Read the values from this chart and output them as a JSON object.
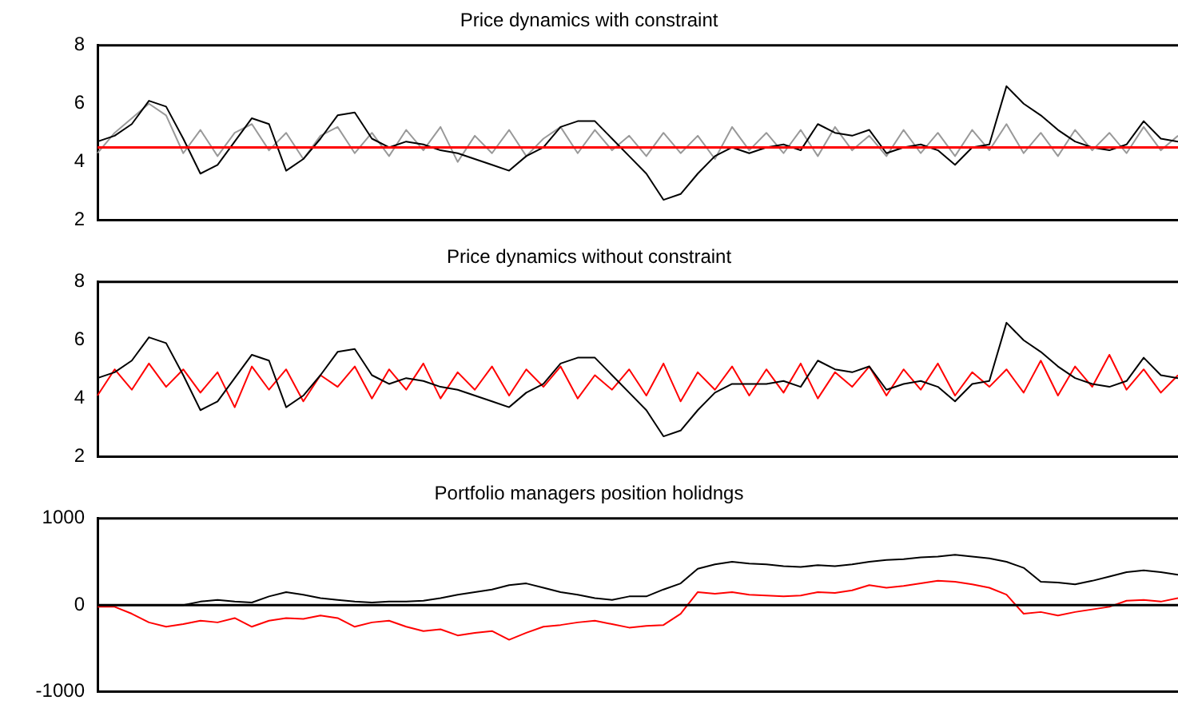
{
  "chart_data": [
    {
      "type": "line",
      "title": "Price dynamics with constraint",
      "categories": [
        null,
        null,
        null,
        null,
        null,
        null,
        null,
        null,
        null,
        null,
        null,
        null,
        null,
        null,
        null,
        null,
        null,
        null,
        null,
        null,
        null,
        null,
        null,
        null,
        null,
        null,
        null,
        null,
        null,
        null,
        null,
        null,
        null,
        null,
        null,
        null,
        null,
        null,
        null,
        null,
        null,
        null,
        null,
        null,
        null,
        null,
        null,
        null,
        null,
        null,
        null,
        null,
        null,
        null,
        null,
        null,
        null,
        null,
        null,
        null,
        null,
        null,
        null,
        null
      ],
      "ylim": [
        2,
        8
      ],
      "yticks": [
        2,
        4,
        6,
        8
      ],
      "tick_labels": "y",
      "legend": false,
      "grid": false,
      "marker": "none",
      "line_style": "solid",
      "series": [
        {
          "color": "#000000",
          "values": [
            4.7,
            4.9,
            5.3,
            6.1,
            5.9,
            4.8,
            3.6,
            3.9,
            4.7,
            5.5,
            5.3,
            3.7,
            4.1,
            4.8,
            5.6,
            5.7,
            4.8,
            4.5,
            4.7,
            4.6,
            4.4,
            4.3,
            4.1,
            3.9,
            3.7,
            4.2,
            4.5,
            5.2,
            5.4,
            5.4,
            4.8,
            4.2,
            3.6,
            2.7,
            2.9,
            3.6,
            4.2,
            4.5,
            4.3,
            4.5,
            4.6,
            4.4,
            5.3,
            5.0,
            4.9,
            5.1,
            4.3,
            4.5,
            4.6,
            4.4,
            3.9,
            4.5,
            4.6,
            6.6,
            6.0,
            5.6,
            5.1,
            4.7,
            4.5,
            4.4,
            4.6,
            5.4,
            4.8,
            4.7
          ]
        },
        {
          "color": "#999999",
          "values": [
            4.3,
            5.0,
            5.5,
            6.0,
            5.6,
            4.3,
            5.1,
            4.2,
            5.0,
            5.3,
            4.4,
            5.0,
            4.1,
            4.9,
            5.2,
            4.3,
            5.0,
            4.2,
            5.1,
            4.4,
            5.2,
            4.0,
            4.9,
            4.3,
            5.1,
            4.2,
            4.8,
            5.2,
            4.3,
            5.1,
            4.4,
            4.9,
            4.2,
            5.0,
            4.3,
            4.9,
            4.1,
            5.2,
            4.4,
            5.0,
            4.3,
            5.1,
            4.2,
            5.2,
            4.4,
            4.9,
            4.2,
            5.1,
            4.3,
            5.0,
            4.2,
            5.1,
            4.4,
            5.3,
            4.3,
            5.0,
            4.2,
            5.1,
            4.4,
            5.0,
            4.3,
            5.2,
            4.4,
            4.9
          ]
        }
      ],
      "ref_lines": [
        {
          "axis": "y",
          "value": 4.5,
          "color": "#ff0000"
        }
      ]
    },
    {
      "type": "line",
      "title": "Price dynamics without constraint",
      "categories": [
        null,
        null,
        null,
        null,
        null,
        null,
        null,
        null,
        null,
        null,
        null,
        null,
        null,
        null,
        null,
        null,
        null,
        null,
        null,
        null,
        null,
        null,
        null,
        null,
        null,
        null,
        null,
        null,
        null,
        null,
        null,
        null,
        null,
        null,
        null,
        null,
        null,
        null,
        null,
        null,
        null,
        null,
        null,
        null,
        null,
        null,
        null,
        null,
        null,
        null,
        null,
        null,
        null,
        null,
        null,
        null,
        null,
        null,
        null,
        null,
        null,
        null,
        null,
        null
      ],
      "ylim": [
        2,
        8
      ],
      "yticks": [
        2,
        4,
        6,
        8
      ],
      "tick_labels": "y",
      "legend": false,
      "grid": false,
      "marker": "none",
      "line_style": "solid",
      "series": [
        {
          "color": "#000000",
          "values": [
            4.7,
            4.9,
            5.3,
            6.1,
            5.9,
            4.8,
            3.6,
            3.9,
            4.7,
            5.5,
            5.3,
            3.7,
            4.1,
            4.8,
            5.6,
            5.7,
            4.8,
            4.5,
            4.7,
            4.6,
            4.4,
            4.3,
            4.1,
            3.9,
            3.7,
            4.2,
            4.5,
            5.2,
            5.4,
            5.4,
            4.8,
            4.2,
            3.6,
            2.7,
            2.9,
            3.6,
            4.2,
            4.5,
            4.5,
            4.5,
            4.6,
            4.4,
            5.3,
            5.0,
            4.9,
            5.1,
            4.3,
            4.5,
            4.6,
            4.4,
            3.9,
            4.5,
            4.6,
            6.6,
            6.0,
            5.6,
            5.1,
            4.7,
            4.5,
            4.4,
            4.6,
            5.4,
            4.8,
            4.7
          ]
        },
        {
          "color": "#ff0000",
          "values": [
            4.1,
            5.0,
            4.3,
            5.2,
            4.4,
            5.0,
            4.2,
            4.9,
            3.7,
            5.1,
            4.3,
            5.0,
            3.9,
            4.8,
            4.4,
            5.1,
            4.0,
            5.0,
            4.3,
            5.2,
            4.0,
            4.9,
            4.3,
            5.1,
            4.1,
            5.0,
            4.4,
            5.1,
            4.0,
            4.8,
            4.3,
            5.0,
            4.1,
            5.2,
            3.9,
            4.9,
            4.3,
            5.1,
            4.1,
            5.0,
            4.2,
            5.2,
            4.0,
            4.9,
            4.4,
            5.1,
            4.1,
            5.0,
            4.3,
            5.2,
            4.1,
            4.9,
            4.4,
            5.0,
            4.2,
            5.3,
            4.1,
            5.1,
            4.4,
            5.5,
            4.3,
            5.0,
            4.2,
            4.8
          ]
        }
      ]
    },
    {
      "type": "line",
      "title": "Portfolio managers position holidngs",
      "categories": [
        null,
        null,
        null,
        null,
        null,
        null,
        null,
        null,
        null,
        null,
        null,
        null,
        null,
        null,
        null,
        null,
        null,
        null,
        null,
        null,
        null,
        null,
        null,
        null,
        null,
        null,
        null,
        null,
        null,
        null,
        null,
        null,
        null,
        null,
        null,
        null,
        null,
        null,
        null,
        null,
        null,
        null,
        null,
        null,
        null,
        null,
        null,
        null,
        null,
        null,
        null,
        null,
        null,
        null,
        null,
        null,
        null,
        null,
        null,
        null,
        null,
        null,
        null,
        null
      ],
      "ylim": [
        -1000,
        1000
      ],
      "yticks": [
        -1000,
        0,
        1000
      ],
      "tick_labels": "y",
      "legend": false,
      "grid": false,
      "marker": "none",
      "line_style": "solid",
      "series": [
        {
          "color": "#000000",
          "values": [
            0,
            0,
            0,
            0,
            0,
            0,
            40,
            60,
            40,
            30,
            100,
            150,
            120,
            80,
            60,
            40,
            30,
            40,
            40,
            50,
            80,
            120,
            150,
            180,
            230,
            250,
            200,
            150,
            120,
            80,
            60,
            100,
            100,
            180,
            250,
            420,
            470,
            500,
            480,
            470,
            450,
            440,
            460,
            450,
            470,
            500,
            520,
            530,
            550,
            560,
            580,
            560,
            540,
            500,
            430,
            270,
            260,
            240,
            280,
            330,
            380,
            400,
            380,
            350
          ]
        },
        {
          "color": "#ff0000",
          "values": [
            -20,
            -20,
            -100,
            -200,
            -250,
            -220,
            -180,
            -200,
            -150,
            -250,
            -180,
            -150,
            -160,
            -120,
            -150,
            -250,
            -200,
            -180,
            -250,
            -300,
            -280,
            -350,
            -320,
            -300,
            -400,
            -320,
            -250,
            -230,
            -200,
            -180,
            -220,
            -260,
            -240,
            -230,
            -100,
            150,
            130,
            150,
            120,
            110,
            100,
            110,
            150,
            140,
            170,
            230,
            200,
            220,
            250,
            280,
            270,
            240,
            200,
            120,
            -100,
            -80,
            -120,
            -80,
            -50,
            -20,
            50,
            60,
            40,
            80
          ]
        }
      ],
      "ref_lines": [
        {
          "axis": "y",
          "value": 0,
          "color": "#000000"
        }
      ]
    }
  ]
}
